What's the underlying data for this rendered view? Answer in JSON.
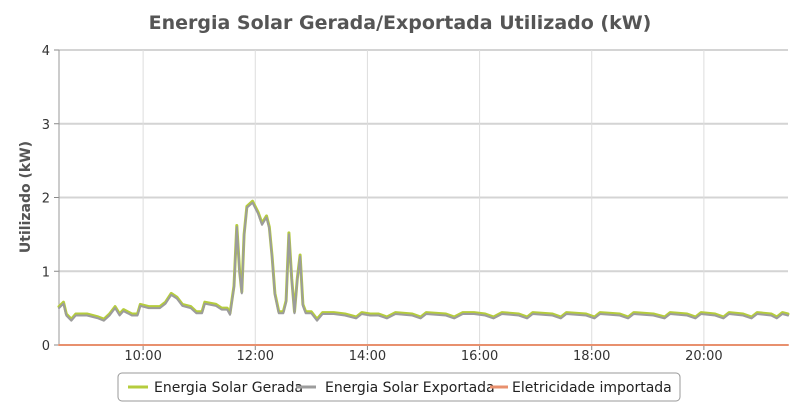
{
  "chart_data": {
    "type": "line",
    "title": "Energia Solar Gerada/Exportada Utilizado (kW)",
    "ylabel": "Utilizado (kW)",
    "xlabel": "",
    "x_range_hours": [
      8.5,
      21.5
    ],
    "ylim": [
      0,
      4
    ],
    "y_ticks": [
      0,
      1,
      2,
      3,
      4
    ],
    "y_tick_labels": [
      "0",
      "1",
      "2",
      "3",
      "4"
    ],
    "x_ticks": [
      10,
      12,
      14,
      16,
      18,
      20
    ],
    "x_tick_labels": [
      "10:00",
      "12:00",
      "14:00",
      "16:00",
      "18:00",
      "20:00"
    ],
    "grid": true,
    "legend_position": "bottom-center",
    "series": [
      {
        "name": "Energia Solar Gerada",
        "color": "#b5cc3d",
        "points": [
          [
            8.5,
            0.52
          ],
          [
            8.58,
            0.58
          ],
          [
            8.63,
            0.42
          ],
          [
            8.72,
            0.35
          ],
          [
            8.8,
            0.42
          ],
          [
            9.0,
            0.42
          ],
          [
            9.2,
            0.38
          ],
          [
            9.3,
            0.35
          ],
          [
            9.4,
            0.42
          ],
          [
            9.5,
            0.52
          ],
          [
            9.58,
            0.42
          ],
          [
            9.65,
            0.48
          ],
          [
            9.8,
            0.42
          ],
          [
            9.9,
            0.42
          ],
          [
            9.95,
            0.55
          ],
          [
            10.1,
            0.52
          ],
          [
            10.3,
            0.52
          ],
          [
            10.4,
            0.58
          ],
          [
            10.5,
            0.7
          ],
          [
            10.6,
            0.65
          ],
          [
            10.7,
            0.55
          ],
          [
            10.85,
            0.52
          ],
          [
            10.95,
            0.45
          ],
          [
            11.05,
            0.45
          ],
          [
            11.1,
            0.58
          ],
          [
            11.3,
            0.55
          ],
          [
            11.4,
            0.5
          ],
          [
            11.5,
            0.5
          ],
          [
            11.55,
            0.43
          ],
          [
            11.62,
            0.8
          ],
          [
            11.67,
            1.62
          ],
          [
            11.72,
            1.0
          ],
          [
            11.76,
            0.72
          ],
          [
            11.8,
            1.5
          ],
          [
            11.85,
            1.88
          ],
          [
            11.95,
            1.95
          ],
          [
            12.05,
            1.8
          ],
          [
            12.12,
            1.65
          ],
          [
            12.2,
            1.75
          ],
          [
            12.25,
            1.6
          ],
          [
            12.3,
            1.2
          ],
          [
            12.35,
            0.7
          ],
          [
            12.42,
            0.45
          ],
          [
            12.5,
            0.45
          ],
          [
            12.55,
            0.6
          ],
          [
            12.6,
            1.52
          ],
          [
            12.65,
            0.9
          ],
          [
            12.7,
            0.45
          ],
          [
            12.75,
            0.9
          ],
          [
            12.8,
            1.22
          ],
          [
            12.85,
            0.55
          ],
          [
            12.9,
            0.45
          ],
          [
            13.0,
            0.45
          ],
          [
            13.1,
            0.35
          ],
          [
            13.2,
            0.44
          ],
          [
            13.4,
            0.44
          ],
          [
            13.6,
            0.42
          ],
          [
            13.8,
            0.38
          ],
          [
            13.9,
            0.44
          ],
          [
            14.05,
            0.42
          ],
          [
            14.2,
            0.42
          ],
          [
            14.35,
            0.38
          ],
          [
            14.5,
            0.44
          ],
          [
            14.8,
            0.42
          ],
          [
            14.95,
            0.38
          ],
          [
            15.05,
            0.44
          ],
          [
            15.4,
            0.42
          ],
          [
            15.55,
            0.38
          ],
          [
            15.7,
            0.44
          ],
          [
            15.9,
            0.44
          ],
          [
            16.1,
            0.42
          ],
          [
            16.25,
            0.38
          ],
          [
            16.4,
            0.44
          ],
          [
            16.7,
            0.42
          ],
          [
            16.85,
            0.38
          ],
          [
            16.95,
            0.44
          ],
          [
            17.3,
            0.42
          ],
          [
            17.45,
            0.38
          ],
          [
            17.55,
            0.44
          ],
          [
            17.9,
            0.42
          ],
          [
            18.05,
            0.38
          ],
          [
            18.15,
            0.44
          ],
          [
            18.5,
            0.42
          ],
          [
            18.65,
            0.38
          ],
          [
            18.75,
            0.44
          ],
          [
            19.1,
            0.42
          ],
          [
            19.3,
            0.38
          ],
          [
            19.4,
            0.44
          ],
          [
            19.7,
            0.42
          ],
          [
            19.85,
            0.38
          ],
          [
            19.95,
            0.44
          ],
          [
            20.2,
            0.42
          ],
          [
            20.35,
            0.38
          ],
          [
            20.45,
            0.44
          ],
          [
            20.7,
            0.42
          ],
          [
            20.85,
            0.38
          ],
          [
            20.95,
            0.44
          ],
          [
            21.2,
            0.42
          ],
          [
            21.3,
            0.38
          ],
          [
            21.4,
            0.44
          ],
          [
            21.5,
            0.42
          ]
        ]
      },
      {
        "name": "Energia Solar Exportada",
        "color": "#9c9c9c",
        "points": [
          [
            8.5,
            0.5
          ],
          [
            8.58,
            0.56
          ],
          [
            8.63,
            0.4
          ],
          [
            8.72,
            0.33
          ],
          [
            8.8,
            0.4
          ],
          [
            9.0,
            0.4
          ],
          [
            9.2,
            0.36
          ],
          [
            9.3,
            0.33
          ],
          [
            9.4,
            0.4
          ],
          [
            9.5,
            0.5
          ],
          [
            9.58,
            0.4
          ],
          [
            9.65,
            0.46
          ],
          [
            9.8,
            0.4
          ],
          [
            9.9,
            0.4
          ],
          [
            9.95,
            0.53
          ],
          [
            10.1,
            0.5
          ],
          [
            10.3,
            0.5
          ],
          [
            10.4,
            0.56
          ],
          [
            10.5,
            0.68
          ],
          [
            10.6,
            0.63
          ],
          [
            10.7,
            0.53
          ],
          [
            10.85,
            0.5
          ],
          [
            10.95,
            0.43
          ],
          [
            11.05,
            0.43
          ],
          [
            11.1,
            0.56
          ],
          [
            11.3,
            0.53
          ],
          [
            11.4,
            0.48
          ],
          [
            11.5,
            0.48
          ],
          [
            11.55,
            0.41
          ],
          [
            11.62,
            0.78
          ],
          [
            11.67,
            1.6
          ],
          [
            11.72,
            0.98
          ],
          [
            11.76,
            0.7
          ],
          [
            11.8,
            1.48
          ],
          [
            11.85,
            1.86
          ],
          [
            11.95,
            1.93
          ],
          [
            12.05,
            1.78
          ],
          [
            12.12,
            1.63
          ],
          [
            12.2,
            1.73
          ],
          [
            12.25,
            1.58
          ],
          [
            12.3,
            1.18
          ],
          [
            12.35,
            0.68
          ],
          [
            12.42,
            0.43
          ],
          [
            12.5,
            0.43
          ],
          [
            12.55,
            0.58
          ],
          [
            12.6,
            1.5
          ],
          [
            12.65,
            0.88
          ],
          [
            12.7,
            0.43
          ],
          [
            12.75,
            0.88
          ],
          [
            12.8,
            1.2
          ],
          [
            12.85,
            0.53
          ],
          [
            12.9,
            0.43
          ],
          [
            13.0,
            0.43
          ],
          [
            13.1,
            0.33
          ],
          [
            13.2,
            0.42
          ],
          [
            13.4,
            0.42
          ],
          [
            13.6,
            0.4
          ],
          [
            13.8,
            0.36
          ],
          [
            13.9,
            0.42
          ],
          [
            14.05,
            0.4
          ],
          [
            14.2,
            0.4
          ],
          [
            14.35,
            0.36
          ],
          [
            14.5,
            0.42
          ],
          [
            14.8,
            0.4
          ],
          [
            14.95,
            0.36
          ],
          [
            15.05,
            0.42
          ],
          [
            15.4,
            0.4
          ],
          [
            15.55,
            0.36
          ],
          [
            15.7,
            0.42
          ],
          [
            15.9,
            0.42
          ],
          [
            16.1,
            0.4
          ],
          [
            16.25,
            0.36
          ],
          [
            16.4,
            0.42
          ],
          [
            16.7,
            0.4
          ],
          [
            16.85,
            0.36
          ],
          [
            16.95,
            0.42
          ],
          [
            17.3,
            0.4
          ],
          [
            17.45,
            0.36
          ],
          [
            17.55,
            0.42
          ],
          [
            17.9,
            0.4
          ],
          [
            18.05,
            0.36
          ],
          [
            18.15,
            0.42
          ],
          [
            18.5,
            0.4
          ],
          [
            18.65,
            0.36
          ],
          [
            18.75,
            0.42
          ],
          [
            19.1,
            0.4
          ],
          [
            19.3,
            0.36
          ],
          [
            19.4,
            0.42
          ],
          [
            19.7,
            0.4
          ],
          [
            19.85,
            0.36
          ],
          [
            19.95,
            0.42
          ],
          [
            20.2,
            0.4
          ],
          [
            20.35,
            0.36
          ],
          [
            20.45,
            0.42
          ],
          [
            20.7,
            0.4
          ],
          [
            20.85,
            0.36
          ],
          [
            20.95,
            0.42
          ],
          [
            21.2,
            0.4
          ],
          [
            21.3,
            0.36
          ],
          [
            21.4,
            0.42
          ],
          [
            21.5,
            0.4
          ]
        ]
      },
      {
        "name": "Eletricidade importada",
        "color": "#e8906e",
        "points": [
          [
            8.5,
            0
          ],
          [
            21.5,
            0
          ]
        ]
      }
    ]
  }
}
